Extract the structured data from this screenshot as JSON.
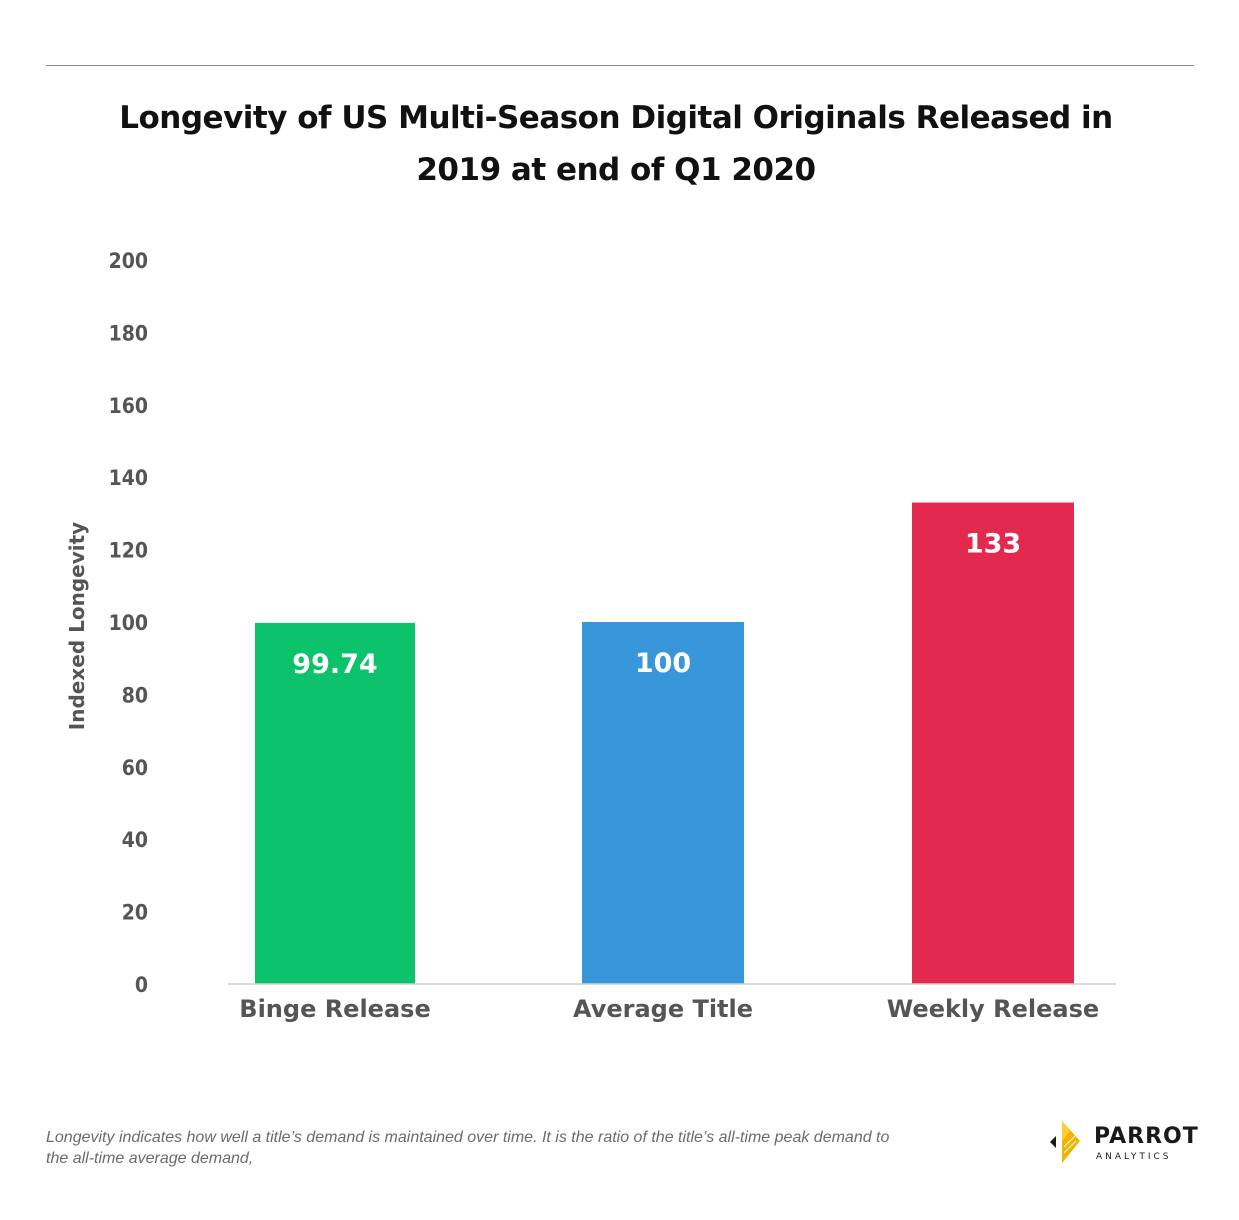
{
  "title_lines": [
    "Longevity of US Multi-Season Digital Originals Released in",
    "2019 at end of Q1 2020"
  ],
  "footnote_lines": [
    "Longevity indicates how well a title’s demand is maintained over time. It is the ratio of the title’s all-time peak demand to",
    "the all-time average demand,"
  ],
  "logo": {
    "name": "PARROT",
    "sub": "ANALYTICS",
    "icon": "parrot-logo-icon"
  },
  "chart_data": {
    "type": "bar",
    "title": "Longevity of US Multi-Season Digital Originals Released in 2019 at end of Q1 2020",
    "xlabel": "",
    "ylabel": "Indexed Longevity",
    "ylim": [
      0,
      200
    ],
    "yticks": [
      0,
      20,
      40,
      60,
      80,
      100,
      120,
      140,
      160,
      180,
      200
    ],
    "categories": [
      "Binge Release",
      "Average Title",
      "Weekly Release"
    ],
    "values": [
      99.74,
      100,
      133
    ],
    "value_labels": [
      "99.74",
      "100",
      "133"
    ],
    "colors": [
      "#0cc26b",
      "#3897da",
      "#e4294e"
    ],
    "grid": false,
    "legend": "none"
  }
}
